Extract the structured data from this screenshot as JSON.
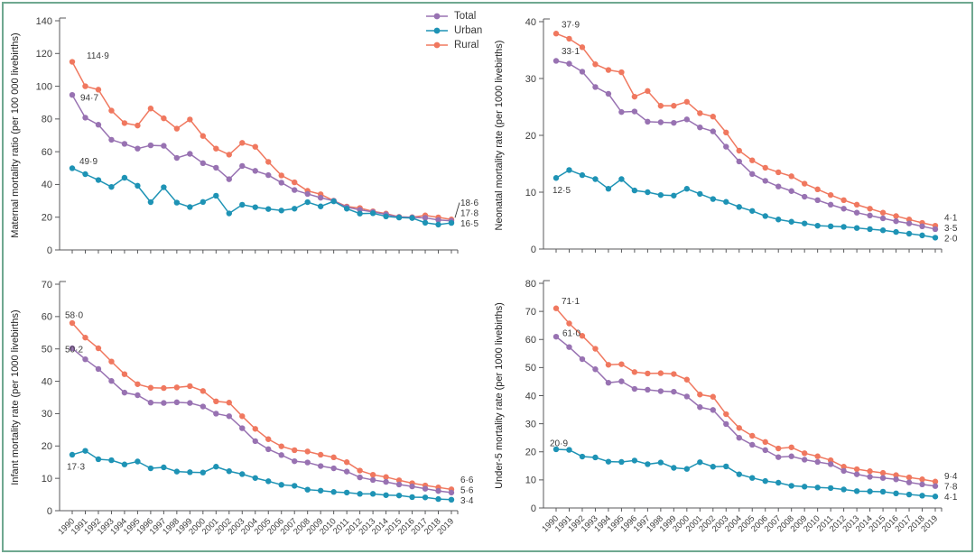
{
  "figure": {
    "background": "#ffffff",
    "frame_color": "#6fa890",
    "axis_color": "#58595b",
    "label_color": "#3a3a3a",
    "legend": {
      "items": [
        {
          "key": "total",
          "label": "Total",
          "color": "#9872b2"
        },
        {
          "key": "urban",
          "label": "Urban",
          "color": "#1e93b5"
        },
        {
          "key": "rural",
          "label": "Rural",
          "color": "#f0785f"
        }
      ]
    }
  },
  "chart_data": [
    {
      "id": "maternal-mortality",
      "type": "line",
      "title": "",
      "ylabel": "Maternal mortality ratio (per 100 000 livebirths)",
      "ylim": [
        0,
        140
      ],
      "ytick_step": 20,
      "grid": false,
      "show_x_labels": false,
      "x": [
        1990,
        1991,
        1992,
        1993,
        1994,
        1995,
        1996,
        1997,
        1998,
        1999,
        2000,
        2001,
        2002,
        2003,
        2004,
        2005,
        2006,
        2007,
        2008,
        2009,
        2010,
        2011,
        2012,
        2013,
        2014,
        2015,
        2016,
        2017,
        2018,
        2019
      ],
      "plot": {
        "px0": 66,
        "py0": 23,
        "py1": 277,
        "x_first": 80,
        "x_last": 500
      },
      "series": [
        {
          "key": "rural",
          "name": "Rural",
          "color": "#f0785f",
          "values": [
            114.9,
            100.0,
            97.9,
            85.1,
            77.5,
            76.0,
            86.4,
            80.4,
            74.1,
            79.7,
            69.6,
            61.9,
            58.2,
            65.4,
            63.0,
            53.8,
            45.5,
            41.3,
            36.1,
            34.0,
            30.1,
            26.5,
            25.6,
            23.6,
            22.2,
            20.2,
            20.0,
            21.1,
            19.9,
            18.6
          ],
          "start_label": "114·9",
          "start_label_offset": [
            16,
            -7
          ],
          "end_label": "18·6"
        },
        {
          "key": "total",
          "name": "Total",
          "color": "#9872b2",
          "values": [
            94.7,
            80.8,
            76.5,
            67.3,
            64.8,
            61.9,
            63.9,
            63.6,
            56.2,
            58.7,
            53.0,
            50.2,
            43.2,
            51.3,
            48.3,
            45.7,
            41.1,
            36.6,
            34.2,
            31.9,
            30.0,
            26.1,
            24.5,
            23.2,
            21.7,
            20.1,
            19.9,
            19.6,
            18.3,
            17.8
          ],
          "start_label": "94·7",
          "start_label_offset": [
            9,
            3
          ],
          "end_label": "17·8"
        },
        {
          "key": "urban",
          "name": "Urban",
          "color": "#1e93b5",
          "values": [
            49.9,
            46.3,
            42.7,
            38.5,
            44.1,
            39.2,
            29.2,
            38.3,
            28.9,
            26.2,
            29.3,
            33.1,
            22.3,
            27.6,
            26.1,
            25.0,
            24.1,
            25.2,
            29.2,
            26.6,
            29.7,
            25.2,
            22.2,
            22.4,
            20.5,
            19.8,
            19.5,
            16.6,
            15.5,
            16.5
          ],
          "start_label": "49·9",
          "start_label_offset": [
            8,
            -8
          ],
          "end_label": "16·5"
        }
      ]
    },
    {
      "id": "neonatal-mortality",
      "type": "line",
      "title": "",
      "ylabel": "Neonatal mortality rate (per 1000 livebirths)",
      "ylim": [
        0,
        40
      ],
      "ytick_step": 10,
      "grid": false,
      "show_x_labels": false,
      "x": [
        1990,
        1991,
        1992,
        1993,
        1994,
        1995,
        1996,
        1997,
        1998,
        1999,
        2000,
        2001,
        2002,
        2003,
        2004,
        2005,
        2006,
        2007,
        2008,
        2009,
        2010,
        2011,
        2012,
        2013,
        2014,
        2015,
        2016,
        2017,
        2018,
        2019
      ],
      "plot": {
        "px0": 602,
        "py0": 24,
        "py1": 276,
        "x_first": 616,
        "x_last": 1036
      },
      "series": [
        {
          "key": "rural",
          "name": "Rural",
          "color": "#f0785f",
          "values": [
            37.9,
            37.0,
            35.5,
            32.5,
            31.5,
            31.1,
            26.8,
            27.8,
            25.2,
            25.2,
            25.9,
            23.9,
            23.3,
            20.5,
            17.3,
            15.6,
            14.3,
            13.5,
            12.8,
            11.5,
            10.5,
            9.5,
            8.6,
            7.8,
            7.1,
            6.4,
            5.8,
            5.2,
            4.6,
            4.1
          ],
          "start_label": "37·9",
          "start_label_offset": [
            6,
            -10
          ],
          "end_label": "4·1"
        },
        {
          "key": "total",
          "name": "Total",
          "color": "#9872b2",
          "values": [
            33.1,
            32.6,
            31.2,
            28.5,
            27.3,
            24.1,
            24.2,
            22.4,
            22.3,
            22.2,
            22.8,
            21.4,
            20.7,
            18.0,
            15.4,
            13.2,
            12.0,
            11.0,
            10.2,
            9.2,
            8.6,
            7.8,
            7.1,
            6.4,
            5.9,
            5.4,
            4.9,
            4.5,
            4.0,
            3.5
          ],
          "start_label": "33·1",
          "start_label_offset": [
            6,
            -11
          ],
          "end_label": "3·5"
        },
        {
          "key": "urban",
          "name": "Urban",
          "color": "#1e93b5",
          "values": [
            12.5,
            13.9,
            13.0,
            12.3,
            10.6,
            12.3,
            10.3,
            10.0,
            9.5,
            9.4,
            10.6,
            9.7,
            8.8,
            8.3,
            7.4,
            6.7,
            5.8,
            5.2,
            4.8,
            4.5,
            4.1,
            4.0,
            3.9,
            3.7,
            3.5,
            3.3,
            3.0,
            2.7,
            2.4,
            2.0
          ],
          "start_label": "12·5",
          "start_label_offset": [
            -4,
            13
          ],
          "end_label": "2·0"
        }
      ]
    },
    {
      "id": "infant-mortality",
      "type": "line",
      "title": "",
      "ylabel": "Infant mortality rate (per 1000 livebirths)",
      "ylim": [
        0,
        70
      ],
      "ytick_step": 10,
      "grid": false,
      "show_x_labels": true,
      "x": [
        1990,
        1991,
        1992,
        1993,
        1994,
        1995,
        1996,
        1997,
        1998,
        1999,
        2000,
        2001,
        2002,
        2003,
        2004,
        2005,
        2006,
        2007,
        2008,
        2009,
        2010,
        2011,
        2012,
        2013,
        2014,
        2015,
        2016,
        2017,
        2018,
        2019
      ],
      "plot": {
        "px0": 66,
        "py0": 315,
        "py1": 566,
        "x_first": 80,
        "x_last": 500
      },
      "series": [
        {
          "key": "rural",
          "name": "Rural",
          "color": "#f0785f",
          "values": [
            58.0,
            53.5,
            50.2,
            46.1,
            42.2,
            39.1,
            38.0,
            37.9,
            38.1,
            38.5,
            37.0,
            33.8,
            33.4,
            29.2,
            25.3,
            22.1,
            19.9,
            18.7,
            18.3,
            17.3,
            16.5,
            15.0,
            12.4,
            11.1,
            10.4,
            9.4,
            8.5,
            7.8,
            7.2,
            6.6
          ],
          "start_label": "58·0",
          "start_label_offset": [
            -8,
            -9
          ],
          "end_label": "6·6"
        },
        {
          "key": "total",
          "name": "Total",
          "color": "#9872b2",
          "values": [
            50.2,
            46.8,
            43.8,
            40.1,
            36.5,
            35.7,
            33.4,
            33.3,
            33.5,
            33.3,
            32.2,
            30.0,
            29.2,
            25.5,
            21.5,
            19.0,
            17.2,
            15.3,
            14.9,
            13.8,
            13.1,
            12.1,
            10.3,
            9.5,
            8.9,
            8.1,
            7.5,
            6.8,
            6.1,
            5.6
          ],
          "start_label": "50·2",
          "start_label_offset": [
            -8,
            1
          ],
          "end_label": "5·6"
        },
        {
          "key": "urban",
          "name": "Urban",
          "color": "#1e93b5",
          "values": [
            17.3,
            18.5,
            15.9,
            15.6,
            14.3,
            15.2,
            13.1,
            13.4,
            12.1,
            11.9,
            11.8,
            13.6,
            12.2,
            11.3,
            10.1,
            9.1,
            8.0,
            7.7,
            6.5,
            6.2,
            5.8,
            5.6,
            5.2,
            5.2,
            4.8,
            4.7,
            4.2,
            4.1,
            3.6,
            3.4
          ],
          "start_label": "17·3",
          "start_label_offset": [
            -6,
            13
          ],
          "end_label": "3·4"
        }
      ]
    },
    {
      "id": "under5-mortality",
      "type": "line",
      "title": "",
      "ylabel": "Under-5 mortality rate (per 1000 livebirths)",
      "ylim": [
        0,
        80
      ],
      "ytick_step": 10,
      "grid": false,
      "show_x_labels": true,
      "x": [
        1990,
        1991,
        1992,
        1993,
        1994,
        1995,
        1996,
        1997,
        1998,
        1999,
        2000,
        2001,
        2002,
        2003,
        2004,
        2005,
        2006,
        2007,
        2008,
        2009,
        2010,
        2011,
        2012,
        2013,
        2014,
        2015,
        2016,
        2017,
        2018,
        2019
      ],
      "plot": {
        "px0": 602,
        "py0": 314,
        "py1": 563,
        "x_first": 616,
        "x_last": 1036
      },
      "series": [
        {
          "key": "rural",
          "name": "Rural",
          "color": "#f0785f",
          "values": [
            71.1,
            65.7,
            61.3,
            56.7,
            51.0,
            51.2,
            48.4,
            47.9,
            48.0,
            47.7,
            45.7,
            40.4,
            39.6,
            33.4,
            28.5,
            25.7,
            23.5,
            21.2,
            21.6,
            19.5,
            18.4,
            17.0,
            14.7,
            13.8,
            13.1,
            12.5,
            11.7,
            10.9,
            10.2,
            9.4
          ],
          "start_label": "71·1",
          "start_label_offset": [
            6,
            -8
          ],
          "end_label": "9·4"
        },
        {
          "key": "total",
          "name": "Total",
          "color": "#9872b2",
          "values": [
            61.0,
            57.3,
            53.0,
            49.4,
            44.6,
            45.1,
            42.4,
            42.1,
            41.6,
            41.4,
            39.7,
            35.9,
            34.9,
            29.9,
            25.0,
            22.5,
            20.6,
            18.1,
            18.4,
            17.2,
            16.4,
            15.6,
            13.2,
            12.0,
            11.1,
            10.7,
            10.2,
            9.1,
            8.4,
            7.8
          ],
          "start_label": "61·0",
          "start_label_offset": [
            7,
            -4
          ],
          "end_label": "7·8"
        },
        {
          "key": "urban",
          "name": "Urban",
          "color": "#1e93b5",
          "values": [
            20.9,
            20.7,
            18.3,
            18.0,
            16.5,
            16.4,
            16.9,
            15.6,
            16.2,
            14.3,
            13.9,
            16.3,
            14.7,
            14.8,
            12.0,
            10.7,
            9.6,
            9.0,
            7.9,
            7.6,
            7.3,
            7.1,
            6.6,
            6.0,
            5.9,
            5.8,
            5.2,
            4.8,
            4.4,
            4.1
          ],
          "start_label": "20·9",
          "start_label_offset": [
            -7,
            -7
          ],
          "end_label": "4·1"
        }
      ]
    }
  ]
}
